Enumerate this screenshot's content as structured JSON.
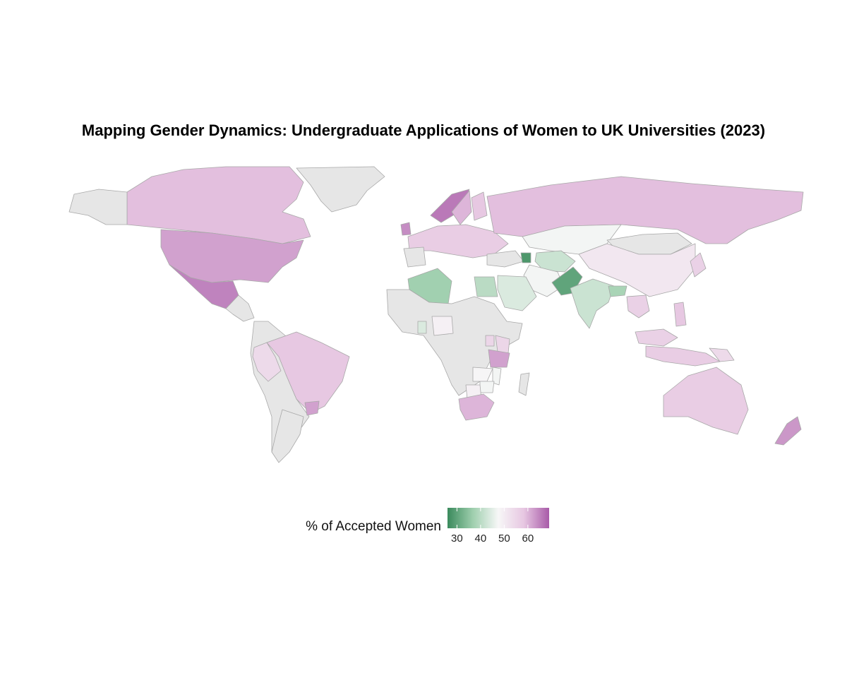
{
  "title": "Mapping Gender Dynamics: Undergraduate Applications of Women to UK Universities (2023)",
  "legend": {
    "title": "% of Accepted Women",
    "ticks": [
      "30",
      "40",
      "50",
      "60"
    ],
    "range": [
      26,
      69
    ],
    "colors": [
      "#3a8a5c",
      "#9fcfae",
      "#f7f7f7",
      "#e7c7e2",
      "#a85ba8"
    ],
    "no_data_color": "#e6e6e6"
  },
  "chart_data": {
    "type": "choropleth",
    "title": "Mapping Gender Dynamics: Undergraduate Applications of Women to UK Universities (2023)",
    "variable": "% of Accepted Women",
    "scale": {
      "min": 26,
      "max": 69,
      "midpoint": 50
    },
    "values": [
      {
        "country": "United States",
        "value": 62
      },
      {
        "country": "Mexico",
        "value": 65
      },
      {
        "country": "Canada",
        "value": 59
      },
      {
        "country": "Greenland",
        "value": null
      },
      {
        "country": "Brazil",
        "value": 58
      },
      {
        "country": "Peru",
        "value": 54
      },
      {
        "country": "Uruguay",
        "value": 62
      },
      {
        "country": "United Kingdom",
        "value": 64
      },
      {
        "country": "Norway",
        "value": 66
      },
      {
        "country": "Sweden",
        "value": 60
      },
      {
        "country": "Finland",
        "value": 58
      },
      {
        "country": "Europe (various)",
        "value": 57
      },
      {
        "country": "Russia",
        "value": 59
      },
      {
        "country": "Kazakhstan",
        "value": 47
      },
      {
        "country": "Mongolia",
        "value": null
      },
      {
        "country": "China",
        "value": 51
      },
      {
        "country": "Japan",
        "value": 56
      },
      {
        "country": "Azerbaijan",
        "value": 28
      },
      {
        "country": "Turkmenistan / Uzbekistan",
        "value": 42
      },
      {
        "country": "Iran",
        "value": 47
      },
      {
        "country": "Saudi Arabia",
        "value": 44
      },
      {
        "country": "Egypt",
        "value": 40
      },
      {
        "country": "Algeria",
        "value": 37
      },
      {
        "country": "Pakistan",
        "value": 30
      },
      {
        "country": "India",
        "value": 42
      },
      {
        "country": "Bangladesh",
        "value": 38
      },
      {
        "country": "Thailand / Vietnam",
        "value": 56
      },
      {
        "country": "Malaysia",
        "value": 56
      },
      {
        "country": "Indonesia",
        "value": 57
      },
      {
        "country": "Philippines",
        "value": 58
      },
      {
        "country": "Papua New Guinea",
        "value": 54
      },
      {
        "country": "Australia",
        "value": 57
      },
      {
        "country": "New Zealand",
        "value": 63
      },
      {
        "country": "Ghana",
        "value": 44
      },
      {
        "country": "Nigeria",
        "value": 49
      },
      {
        "country": "Uganda",
        "value": 55
      },
      {
        "country": "Kenya",
        "value": 55
      },
      {
        "country": "Tanzania",
        "value": 62
      },
      {
        "country": "Zambia",
        "value": 48
      },
      {
        "country": "Zimbabwe",
        "value": 47
      },
      {
        "country": "Malawi",
        "value": 47
      },
      {
        "country": "Botswana",
        "value": 49
      },
      {
        "country": "South Africa",
        "value": 60
      },
      {
        "country": "Argentina",
        "value": null
      },
      {
        "country": "Sub-Saharan Africa (other)",
        "value": null
      }
    ]
  }
}
